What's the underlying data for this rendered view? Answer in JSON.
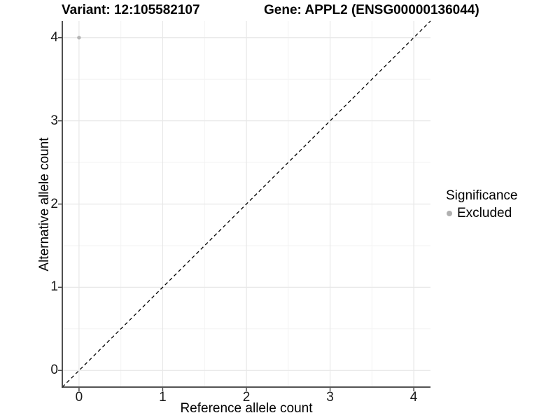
{
  "header": {
    "variant_title": "Variant: 12:105582107",
    "gene_title": "Gene: APPL2 (ENSG00000136044)"
  },
  "chart_data": {
    "type": "scatter",
    "xlabel": "Reference allele count",
    "ylabel": "Alternative allele count",
    "xlim": [
      -0.2,
      4.2
    ],
    "ylim": [
      -0.2,
      4.2
    ],
    "x_ticks": [
      0,
      1,
      2,
      3,
      4
    ],
    "y_ticks": [
      0,
      1,
      2,
      3,
      4
    ],
    "x_minor_ticks": [
      0.5,
      1.5,
      2.5,
      3.5
    ],
    "y_minor_ticks": [
      0.5,
      1.5,
      2.5,
      3.5
    ],
    "grid": "major+minor",
    "series": [
      {
        "name": "Excluded",
        "color": "#b5b5b5",
        "points": [
          {
            "x": 0,
            "y": 4
          }
        ]
      }
    ],
    "reference_line": {
      "kind": "identity",
      "slope": 1,
      "intercept": 0,
      "style": "dashed",
      "color": "#000000"
    },
    "legend_position": "right"
  },
  "legend": {
    "title": "Significance",
    "items": [
      {
        "label": "Excluded",
        "color": "#b0b0b0"
      }
    ]
  },
  "colors": {
    "background": "#ffffff",
    "grid_major": "#e7e7e7",
    "grid_minor": "#f3f3f3",
    "axis": "#3c3c3c",
    "tick_text": "#1a1a1a"
  }
}
